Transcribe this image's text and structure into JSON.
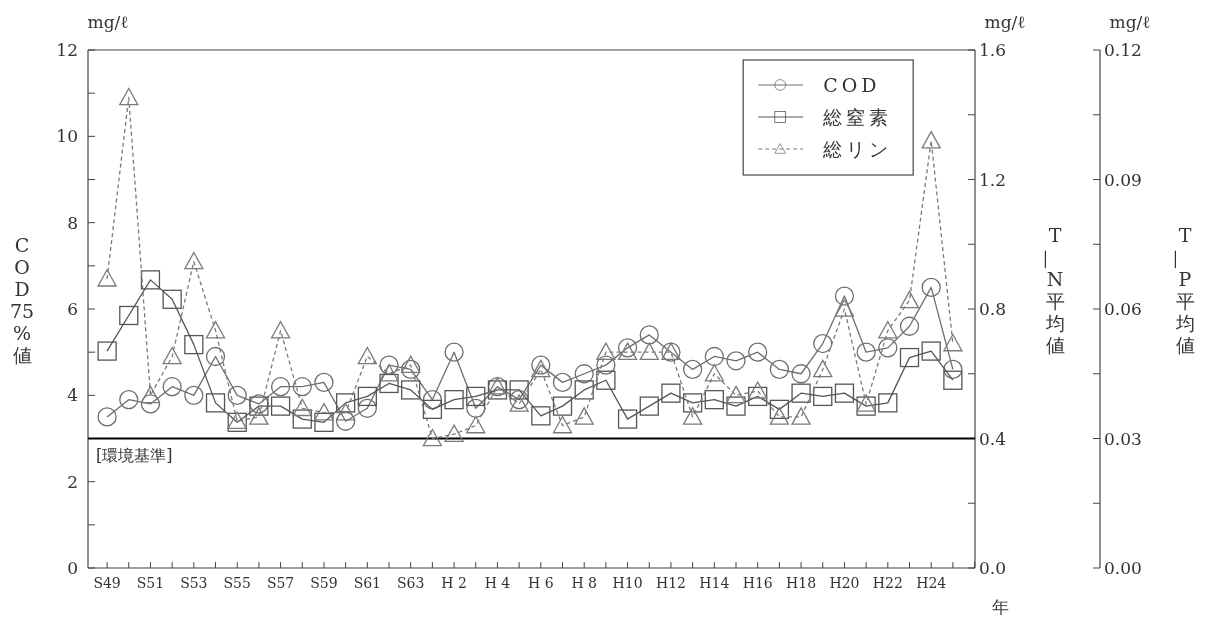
{
  "chart_data": {
    "type": "line",
    "categories": [
      "S49",
      null,
      "S51",
      null,
      "S53",
      null,
      "S55",
      null,
      "S57",
      null,
      "S59",
      null,
      "S61",
      null,
      "S63",
      null,
      "H 2",
      null,
      "H 4",
      null,
      "H 6",
      null,
      "H 8",
      null,
      "H10",
      null,
      "H12",
      null,
      "H14",
      null,
      "H16",
      null,
      "H18",
      null,
      "H20",
      null,
      "H22",
      null,
      "H24",
      null
    ],
    "xlabel": "年",
    "ylabel": "COD75%値",
    "y2label": "T—N平均値",
    "y3label": "T—P平均値",
    "annotations": [
      "mg/ℓ",
      "mg/ℓ",
      "mg/ℓ"
    ],
    "ylim": [
      0,
      12
    ],
    "yticks": [
      0,
      {
        "value": 1,
        "label": null
      },
      2,
      {
        "value": 3,
        "label": null
      },
      4,
      {
        "value": 5,
        "label": null
      },
      6,
      {
        "value": 7,
        "label": null
      },
      8,
      {
        "value": 9,
        "label": null
      },
      10,
      {
        "value": 11,
        "label": null
      },
      12
    ],
    "y2lim": [
      0,
      1.6
    ],
    "y2ticks": [
      {
        "value": 0,
        "label": "0.0"
      },
      {
        "value": 0.2,
        "label": null
      },
      0.4,
      {
        "value": 0.6,
        "label": null
      },
      0.8,
      {
        "value": 1.0,
        "label": null
      },
      1.2,
      {
        "value": 1.4,
        "label": null
      },
      1.6
    ],
    "y3lim": [
      0,
      0.12
    ],
    "y3ticks": [
      {
        "value": 0,
        "label": "0.00"
      },
      {
        "value": 0.015,
        "label": null
      },
      0.03,
      {
        "value": 0.045,
        "label": null
      },
      0.06,
      {
        "value": 0.075,
        "label": null
      },
      0.09,
      {
        "value": 0.105,
        "label": null
      },
      0.12
    ],
    "ref_lines": [
      {
        "axis": "y",
        "value": 3,
        "label": "[環境基準]",
        "color": "#000000"
      }
    ],
    "legend": "top right",
    "series": [
      {
        "name": "COD",
        "color": "#6e6e6e",
        "marker": "circle",
        "line_style": "solid",
        "values": [
          3.5,
          3.9,
          3.8,
          4.2,
          4.0,
          4.9,
          4.0,
          3.8,
          4.2,
          4.2,
          4.3,
          3.4,
          3.7,
          4.7,
          4.6,
          3.9,
          5.0,
          3.7,
          4.2,
          3.9,
          4.7,
          4.3,
          4.5,
          4.7,
          5.1,
          5.4,
          5.0,
          4.6,
          4.9,
          4.8,
          5.0,
          4.6,
          4.5,
          5.2,
          6.3,
          5.0,
          5.1,
          5.6,
          6.5,
          4.6
        ]
      },
      {
        "name": "総窒素",
        "color": "#555555",
        "marker": "square",
        "line_style": "solid",
        "axis": "y2",
        "values": [
          0.67,
          0.78,
          0.89,
          0.83,
          0.69,
          0.51,
          0.45,
          0.5,
          0.5,
          0.46,
          0.45,
          0.51,
          0.53,
          0.57,
          0.55,
          0.49,
          0.52,
          0.53,
          0.55,
          0.55,
          0.47,
          0.5,
          0.55,
          0.58,
          0.46,
          0.5,
          0.54,
          0.51,
          0.52,
          0.5,
          0.53,
          0.49,
          0.54,
          0.53,
          0.54,
          0.5,
          0.51,
          0.65,
          0.67,
          0.58
        ]
      },
      {
        "name": "総リン",
        "color": "#7a7a7a",
        "marker": "triangle",
        "line_style": "dashed",
        "axis": "y3",
        "values": [
          0.067,
          0.109,
          0.04,
          0.049,
          0.071,
          0.055,
          0.034,
          0.035,
          0.055,
          0.037,
          0.036,
          0.036,
          0.049,
          0.045,
          0.047,
          0.03,
          0.031,
          0.033,
          0.042,
          0.038,
          0.046,
          0.033,
          0.035,
          0.05,
          0.05,
          0.05,
          0.05,
          0.035,
          0.045,
          0.04,
          0.041,
          0.035,
          0.035,
          0.046,
          0.06,
          0.038,
          0.055,
          0.062,
          0.099,
          0.052
        ]
      }
    ]
  }
}
